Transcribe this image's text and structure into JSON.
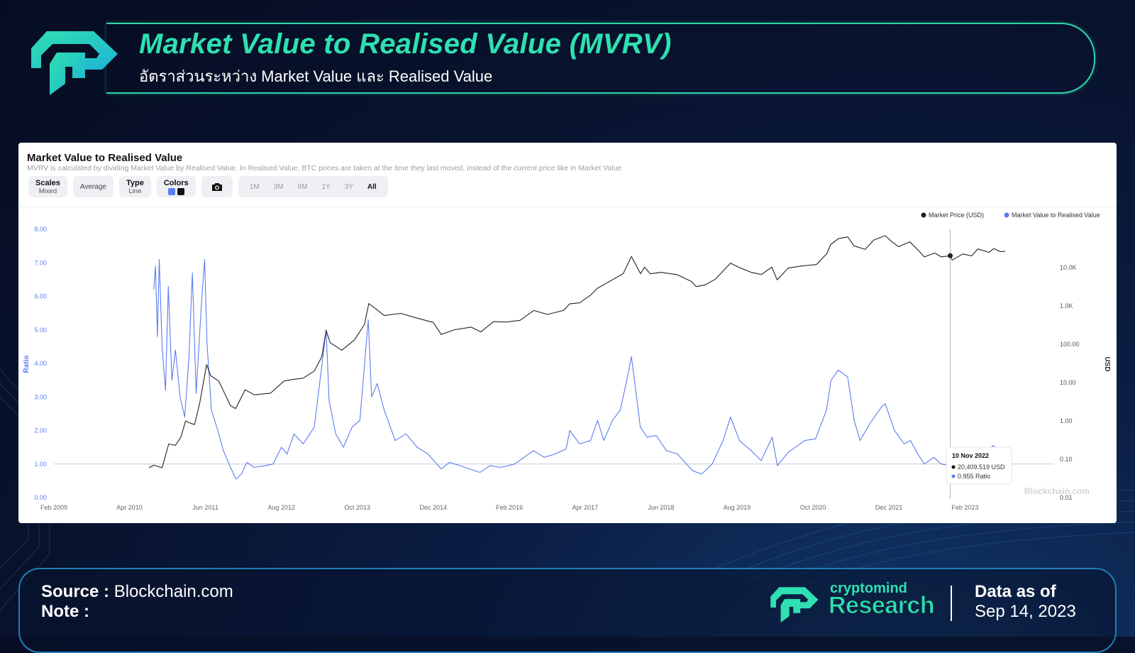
{
  "header": {
    "title": "Market Value to Realised Value (MVRV)",
    "subtitle": "อัตราส่วนระหว่าง Market Value และ Realised Value"
  },
  "chart_panel": {
    "title": "Market Value to Realised Value",
    "description": "MVRV is calculated by dividing Market Value by Realised Value. In Realised Value, BTC prices are taken at the time they last moved, instead of the current price like in Market Value",
    "toolbar": {
      "scales_label": "Scales",
      "scales_value": "Mixed",
      "average_label": "Average",
      "type_label": "Type",
      "type_value": "Line",
      "colors_label": "Colors",
      "ranges": [
        "1M",
        "3M",
        "6M",
        "1Y",
        "3Y",
        "All"
      ],
      "active_range": "All"
    },
    "watermark": "Blockchain.com",
    "tooltip": {
      "date": "10 Nov 2022",
      "price": "20,409.519 USD",
      "ratio": "0.955 Ratio"
    }
  },
  "chart_data": {
    "type": "line",
    "title": "Market Value to Realised Value",
    "ylabel": "Ratio",
    "y2label": "USD",
    "ylim": [
      0,
      8
    ],
    "y2lim": [
      0.01,
      100000
    ],
    "y2_scale": "log",
    "xlim": [
      "2009-02-01",
      "2024-06-15"
    ],
    "x_ticks": [
      "Feb 2009",
      "Apr 2010",
      "Jun 2011",
      "Aug 2012",
      "Oct 2013",
      "Dec 2014",
      "Feb 2016",
      "Apr 2017",
      "Jun 2018",
      "Aug 2019",
      "Oct 2020",
      "Dec 2021",
      "Feb 2023"
    ],
    "y_ticks": [
      "0.00",
      "1.00",
      "2.00",
      "3.00",
      "4.00",
      "5.00",
      "6.00",
      "7.00",
      "8.00"
    ],
    "y2_ticks": [
      "0.01",
      "0.10",
      "1.00",
      "10.00",
      "100.00",
      "1.0K",
      "10.0K"
    ],
    "reference_line": 1,
    "legend_position": "top-right",
    "grid": false,
    "colors": {
      "ratio": "#5b7cf0",
      "price": "#222222"
    },
    "series": [
      {
        "name": "Market Value to Realised Value",
        "axis": "left",
        "color": "#5b7cf0",
        "points": [
          [
            "2010-08-15",
            6.2
          ],
          [
            "2010-08-25",
            6.9
          ],
          [
            "2010-09-05",
            4.8
          ],
          [
            "2010-09-15",
            7.1
          ],
          [
            "2010-10-01",
            4.5
          ],
          [
            "2010-10-20",
            3.2
          ],
          [
            "2010-11-05",
            6.3
          ],
          [
            "2010-11-25",
            3.5
          ],
          [
            "2010-12-15",
            4.4
          ],
          [
            "2011-01-10",
            3.0
          ],
          [
            "2011-02-05",
            2.4
          ],
          [
            "2011-03-01",
            4.2
          ],
          [
            "2011-03-20",
            6.7
          ],
          [
            "2011-04-10",
            3.1
          ],
          [
            "2011-05-10",
            5.8
          ],
          [
            "2011-05-28",
            7.1
          ],
          [
            "2011-06-10",
            4.6
          ],
          [
            "2011-07-05",
            2.6
          ],
          [
            "2011-08-10",
            2.0
          ],
          [
            "2011-09-10",
            1.4
          ],
          [
            "2011-10-20",
            0.9
          ],
          [
            "2011-11-20",
            0.55
          ],
          [
            "2011-12-20",
            0.7
          ],
          [
            "2012-01-20",
            1.05
          ],
          [
            "2012-03-01",
            0.9
          ],
          [
            "2012-05-01",
            0.95
          ],
          [
            "2012-06-15",
            1.0
          ],
          [
            "2012-08-01",
            1.5
          ],
          [
            "2012-09-01",
            1.3
          ],
          [
            "2012-10-10",
            1.9
          ],
          [
            "2012-12-01",
            1.6
          ],
          [
            "2013-02-01",
            2.1
          ],
          [
            "2013-03-01",
            3.3
          ],
          [
            "2013-04-09",
            5.0
          ],
          [
            "2013-04-25",
            2.9
          ],
          [
            "2013-06-01",
            1.9
          ],
          [
            "2013-07-15",
            1.5
          ],
          [
            "2013-09-01",
            2.1
          ],
          [
            "2013-10-15",
            2.3
          ],
          [
            "2013-12-01",
            5.3
          ],
          [
            "2013-12-20",
            3.0
          ],
          [
            "2014-01-20",
            3.4
          ],
          [
            "2014-03-01",
            2.6
          ],
          [
            "2014-05-01",
            1.7
          ],
          [
            "2014-07-01",
            1.9
          ],
          [
            "2014-09-01",
            1.5
          ],
          [
            "2014-11-01",
            1.3
          ],
          [
            "2015-01-15",
            0.85
          ],
          [
            "2015-03-01",
            1.05
          ],
          [
            "2015-05-01",
            0.95
          ],
          [
            "2015-08-20",
            0.75
          ],
          [
            "2015-10-15",
            0.95
          ],
          [
            "2015-12-15",
            0.9
          ],
          [
            "2016-03-01",
            1.0
          ],
          [
            "2016-06-15",
            1.4
          ],
          [
            "2016-08-15",
            1.2
          ],
          [
            "2016-10-15",
            1.3
          ],
          [
            "2016-12-15",
            1.45
          ],
          [
            "2017-01-05",
            2.0
          ],
          [
            "2017-03-01",
            1.6
          ],
          [
            "2017-05-01",
            1.7
          ],
          [
            "2017-06-10",
            2.3
          ],
          [
            "2017-07-15",
            1.7
          ],
          [
            "2017-09-01",
            2.3
          ],
          [
            "2017-10-15",
            2.6
          ],
          [
            "2017-11-25",
            3.6
          ],
          [
            "2017-12-17",
            4.2
          ],
          [
            "2018-01-10",
            3.2
          ],
          [
            "2018-02-05",
            2.1
          ],
          [
            "2018-03-15",
            1.8
          ],
          [
            "2018-05-05",
            1.85
          ],
          [
            "2018-07-01",
            1.4
          ],
          [
            "2018-09-01",
            1.3
          ],
          [
            "2018-11-25",
            0.8
          ],
          [
            "2019-01-15",
            0.7
          ],
          [
            "2019-03-15",
            1.0
          ],
          [
            "2019-05-15",
            1.7
          ],
          [
            "2019-06-26",
            2.4
          ],
          [
            "2019-08-15",
            1.7
          ],
          [
            "2019-10-20",
            1.4
          ],
          [
            "2019-12-15",
            1.1
          ],
          [
            "2020-02-15",
            1.8
          ],
          [
            "2020-03-15",
            0.95
          ],
          [
            "2020-05-15",
            1.35
          ],
          [
            "2020-08-15",
            1.7
          ],
          [
            "2020-10-15",
            1.75
          ],
          [
            "2020-12-15",
            2.6
          ],
          [
            "2021-01-10",
            3.5
          ],
          [
            "2021-02-20",
            3.8
          ],
          [
            "2021-04-13",
            3.6
          ],
          [
            "2021-05-20",
            2.3
          ],
          [
            "2021-06-22",
            1.7
          ],
          [
            "2021-08-15",
            2.2
          ],
          [
            "2021-10-20",
            2.7
          ],
          [
            "2021-11-10",
            2.8
          ],
          [
            "2022-01-01",
            2.0
          ],
          [
            "2022-02-25",
            1.6
          ],
          [
            "2022-04-01",
            1.7
          ],
          [
            "2022-05-12",
            1.3
          ],
          [
            "2022-06-18",
            1.0
          ],
          [
            "2022-08-10",
            1.2
          ],
          [
            "2022-09-20",
            1.0
          ],
          [
            "2022-11-10",
            0.955
          ],
          [
            "2022-12-20",
            0.95
          ],
          [
            "2023-01-20",
            1.05
          ],
          [
            "2023-03-01",
            1.35
          ],
          [
            "2023-04-15",
            1.5
          ],
          [
            "2023-06-01",
            1.4
          ],
          [
            "2023-07-10",
            1.55
          ],
          [
            "2023-08-20",
            1.35
          ],
          [
            "2023-09-14",
            1.3
          ]
        ]
      },
      {
        "name": "Market Price (USD)",
        "axis": "right",
        "color": "#222222",
        "points": [
          [
            "2010-07-20",
            0.06
          ],
          [
            "2010-08-15",
            0.07
          ],
          [
            "2010-10-01",
            0.06
          ],
          [
            "2010-11-07",
            0.25
          ],
          [
            "2010-12-15",
            0.23
          ],
          [
            "2011-01-15",
            0.38
          ],
          [
            "2011-02-10",
            1.0
          ],
          [
            "2011-03-01",
            0.9
          ],
          [
            "2011-04-01",
            0.8
          ],
          [
            "2011-05-01",
            3.0
          ],
          [
            "2011-06-08",
            29.6
          ],
          [
            "2011-07-01",
            15.0
          ],
          [
            "2011-08-15",
            11.0
          ],
          [
            "2011-10-20",
            2.5
          ],
          [
            "2011-11-18",
            2.1
          ],
          [
            "2012-01-10",
            6.5
          ],
          [
            "2012-03-01",
            4.8
          ],
          [
            "2012-06-01",
            5.3
          ],
          [
            "2012-08-15",
            11.0
          ],
          [
            "2012-10-01",
            12.0
          ],
          [
            "2012-12-01",
            13.0
          ],
          [
            "2013-02-01",
            20.0
          ],
          [
            "2013-03-15",
            47.0
          ],
          [
            "2013-04-09",
            230.0
          ],
          [
            "2013-05-01",
            110.0
          ],
          [
            "2013-07-05",
            70.0
          ],
          [
            "2013-09-15",
            130.0
          ],
          [
            "2013-11-10",
            330.0
          ],
          [
            "2013-12-04",
            1150.0
          ],
          [
            "2014-01-15",
            820.0
          ],
          [
            "2014-03-01",
            560.0
          ],
          [
            "2014-06-01",
            640.0
          ],
          [
            "2014-09-01",
            480.0
          ],
          [
            "2014-12-01",
            370.0
          ],
          [
            "2015-01-14",
            180.0
          ],
          [
            "2015-04-01",
            240.0
          ],
          [
            "2015-07-01",
            280.0
          ],
          [
            "2015-08-25",
            210.0
          ],
          [
            "2015-11-04",
            390.0
          ],
          [
            "2016-01-15",
            380.0
          ],
          [
            "2016-04-01",
            420.0
          ],
          [
            "2016-06-17",
            760.0
          ],
          [
            "2016-09-01",
            600.0
          ],
          [
            "2016-12-01",
            760.0
          ],
          [
            "2017-01-04",
            1130.0
          ],
          [
            "2017-03-01",
            1200.0
          ],
          [
            "2017-05-01",
            1900.0
          ],
          [
            "2017-06-10",
            2900.0
          ],
          [
            "2017-09-01",
            4800.0
          ],
          [
            "2017-11-01",
            7000.0
          ],
          [
            "2017-12-17",
            19500.0
          ],
          [
            "2018-02-06",
            6900.0
          ],
          [
            "2018-03-01",
            10300.0
          ],
          [
            "2018-04-01",
            6900.0
          ],
          [
            "2018-06-01",
            7500.0
          ],
          [
            "2018-09-01",
            6500.0
          ],
          [
            "2018-11-20",
            4300.0
          ],
          [
            "2018-12-15",
            3200.0
          ],
          [
            "2019-02-01",
            3500.0
          ],
          [
            "2019-04-02",
            5000.0
          ],
          [
            "2019-06-26",
            13000.0
          ],
          [
            "2019-08-15",
            10000.0
          ],
          [
            "2019-10-25",
            7400.0
          ],
          [
            "2019-12-17",
            6600.0
          ],
          [
            "2020-02-13",
            10300.0
          ],
          [
            "2020-03-13",
            4800.0
          ],
          [
            "2020-05-15",
            9700.0
          ],
          [
            "2020-07-27",
            11000.0
          ],
          [
            "2020-10-20",
            12000.0
          ],
          [
            "2020-12-17",
            23000.0
          ],
          [
            "2021-01-08",
            40000.0
          ],
          [
            "2021-02-21",
            57000.0
          ],
          [
            "2021-04-14",
            63000.0
          ],
          [
            "2021-05-19",
            37000.0
          ],
          [
            "2021-07-20",
            29800.0
          ],
          [
            "2021-09-07",
            52000.0
          ],
          [
            "2021-11-10",
            68000.0
          ],
          [
            "2021-12-15",
            48000.0
          ],
          [
            "2022-01-24",
            35000.0
          ],
          [
            "2022-03-28",
            47000.0
          ],
          [
            "2022-05-12",
            29000.0
          ],
          [
            "2022-06-18",
            19000.0
          ],
          [
            "2022-08-15",
            24000.0
          ],
          [
            "2022-09-20",
            19000.0
          ],
          [
            "2022-11-10",
            20409.519
          ],
          [
            "2022-11-21",
            15800.0
          ],
          [
            "2023-01-20",
            22700.0
          ],
          [
            "2023-03-10",
            20200.0
          ],
          [
            "2023-04-14",
            30500.0
          ],
          [
            "2023-06-15",
            25000.0
          ],
          [
            "2023-07-13",
            31400.0
          ],
          [
            "2023-08-20",
            26000.0
          ],
          [
            "2023-09-14",
            26500.0
          ]
        ]
      }
    ]
  },
  "footer": {
    "source_label": "Source :",
    "source_value": "Blockchain.com",
    "note_label": "Note :",
    "brand_top": "cryptomind",
    "brand_main": "Research",
    "data_as_of_label": "Data as of",
    "data_as_of_value": "Sep 14, 2023"
  }
}
